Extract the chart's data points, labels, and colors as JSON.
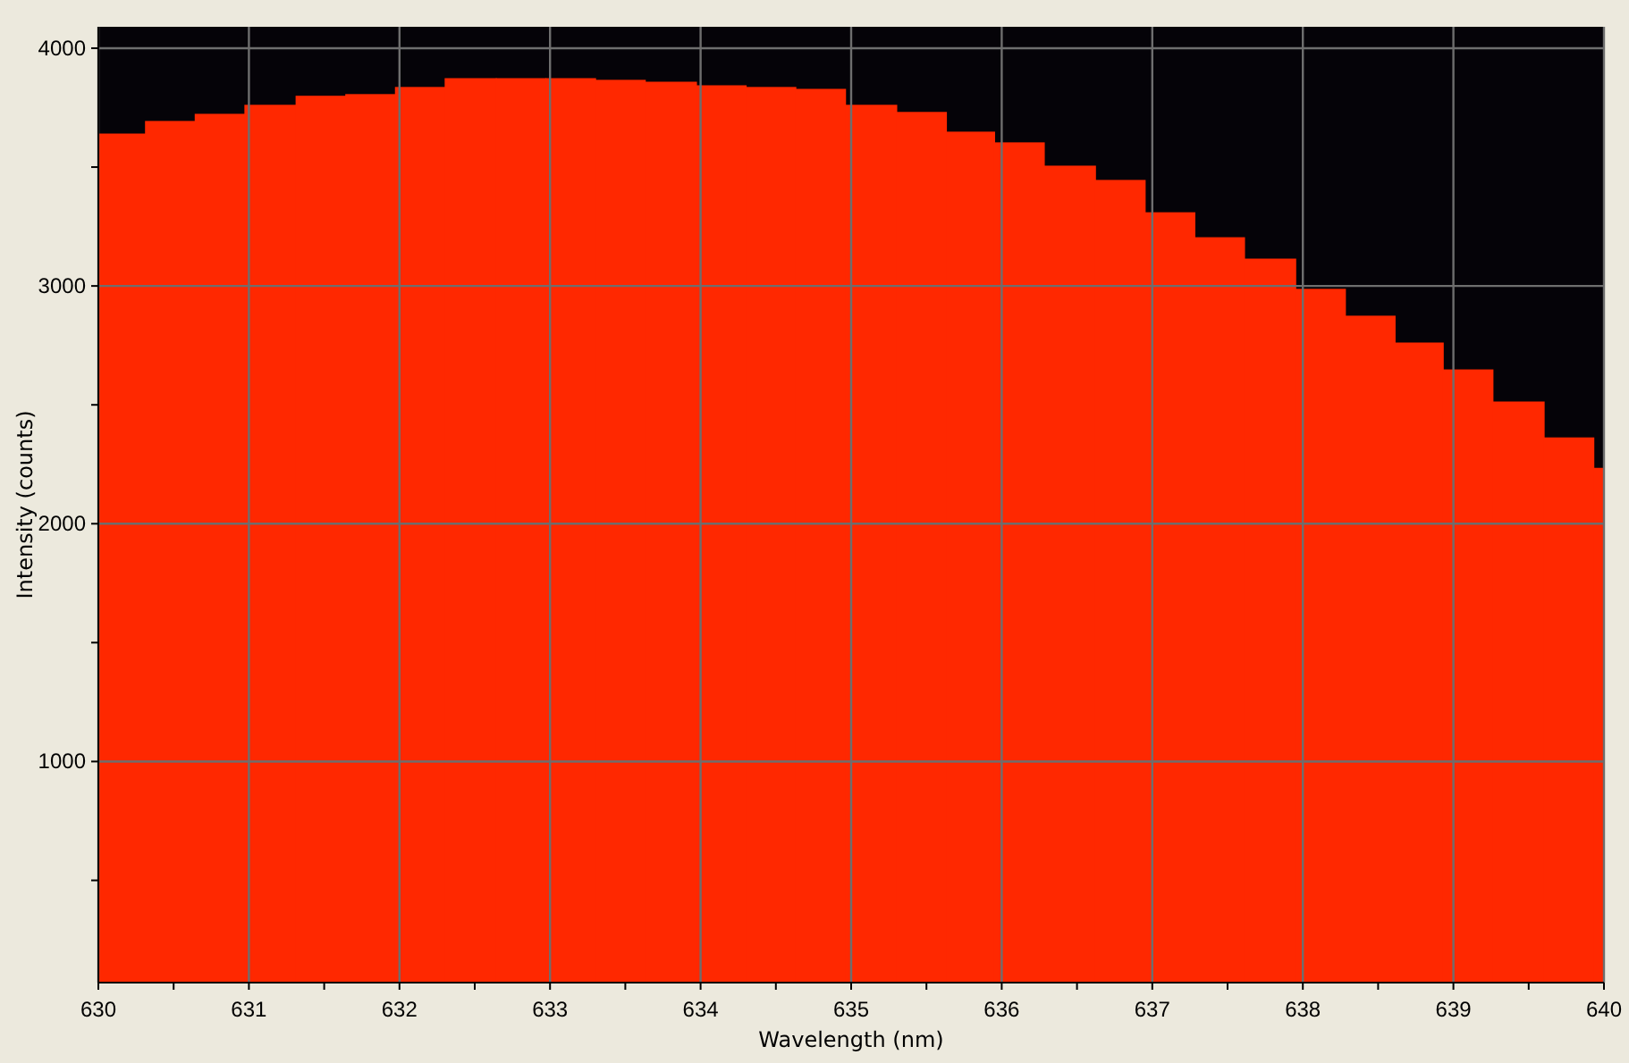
{
  "chart_data": {
    "type": "histogram",
    "xlabel": "Wavelength (nm)",
    "ylabel": "Intensity (counts)",
    "bins": [
      630,
      630.31,
      630.64,
      630.97,
      631.31,
      631.64,
      631.97,
      632.3,
      632.64,
      632.97,
      633.3,
      633.63,
      633.97,
      634.3,
      634.63,
      634.96,
      635.3,
      635.63,
      635.95,
      636.28,
      636.62,
      636.95,
      637.28,
      637.61,
      637.95,
      638.28,
      638.61,
      638.93,
      639.26,
      639.6,
      639.93,
      640
    ],
    "values": [
      3641,
      3694,
      3724,
      3762,
      3800,
      3807,
      3837,
      3874,
      3874,
      3874,
      3867,
      3859,
      3844,
      3837,
      3829,
      3762,
      3732,
      3649,
      3604,
      3506,
      3446,
      3310,
      3205,
      3115,
      2988,
      2875,
      2762,
      2649,
      2514,
      2363,
      2235
    ],
    "color": "#ff2800",
    "xlim": [
      630,
      640
    ],
    "ylim": [
      70,
      4090
    ],
    "xticks": [
      630,
      {
        "value": 630.5,
        "label": null
      },
      631,
      {
        "value": 631.5,
        "label": null
      },
      632,
      {
        "value": 632.5,
        "label": null
      },
      633,
      {
        "value": 633.5,
        "label": null
      },
      634,
      {
        "value": 634.5,
        "label": null
      },
      635,
      {
        "value": 635.5,
        "label": null
      },
      636,
      {
        "value": 636.5,
        "label": null
      },
      637,
      {
        "value": 637.5,
        "label": null
      },
      638,
      {
        "value": 638.5,
        "label": null
      },
      639,
      {
        "value": 639.5,
        "label": null
      },
      640
    ],
    "yticks": [
      {
        "value": 500,
        "label": null
      },
      1000,
      {
        "value": 1500,
        "label": null
      },
      2000,
      {
        "value": 2500,
        "label": null
      },
      3000,
      {
        "value": 3500,
        "label": null
      },
      4000
    ],
    "grid": true
  }
}
